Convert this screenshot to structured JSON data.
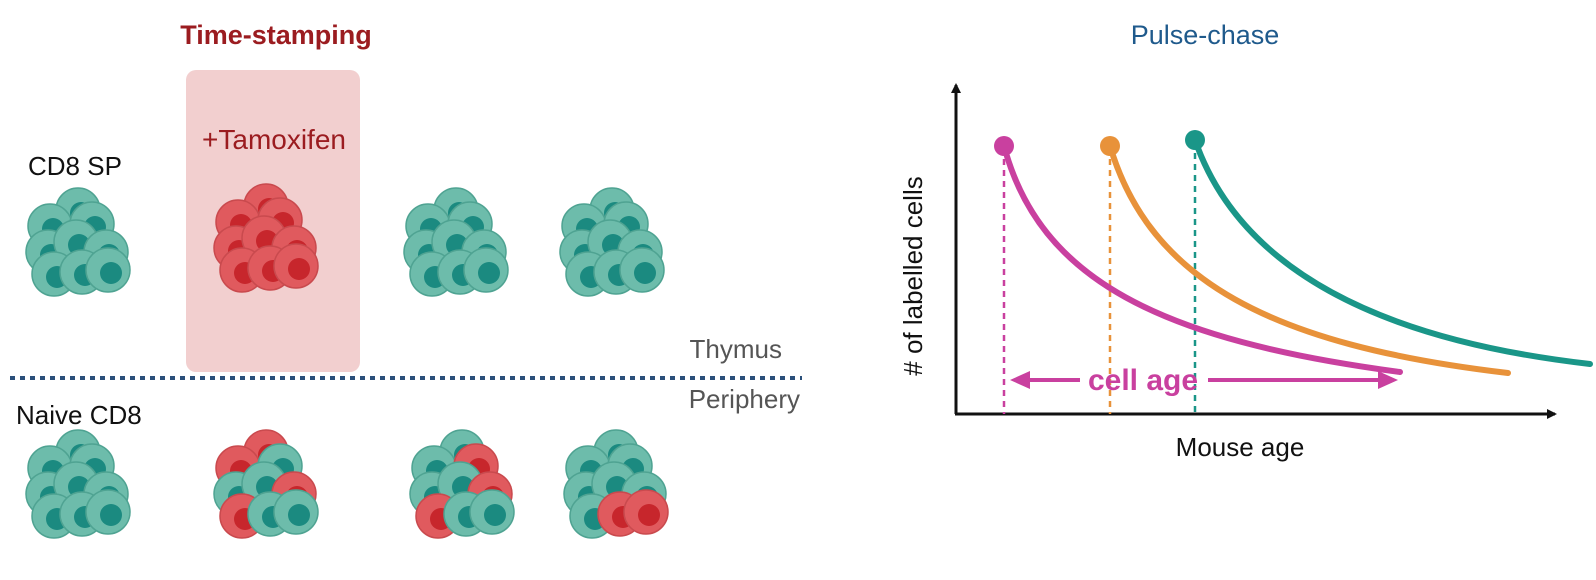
{
  "left": {
    "title": "Time-stamping",
    "treatment": "+Tamoxifen",
    "row_labels": {
      "top": "CD8 SP",
      "bottom": "Naive CD8"
    },
    "compartments": {
      "upper": "Thymus",
      "lower": "Periphery"
    }
  },
  "right": {
    "title": "Pulse-chase",
    "ylabel": "# of labelled cells",
    "xlabel": "Mouse age",
    "arrow_label": "cell age"
  },
  "colors": {
    "title_red": "#9b1c20",
    "title_blue": "#1f5a8c",
    "tamoxifen_box": "#f2cfcf",
    "cell_teal_outer": "#6dbcab",
    "cell_teal_nucleus": "#1b8a80",
    "cell_red_outer": "#e05a5e",
    "cell_red_nucleus": "#c7262c",
    "divider": "#2a4f7a",
    "curve_magenta": "#c9409f",
    "curve_orange": "#e8923a",
    "curve_teal": "#1a9688",
    "text_grey": "#555555"
  }
}
